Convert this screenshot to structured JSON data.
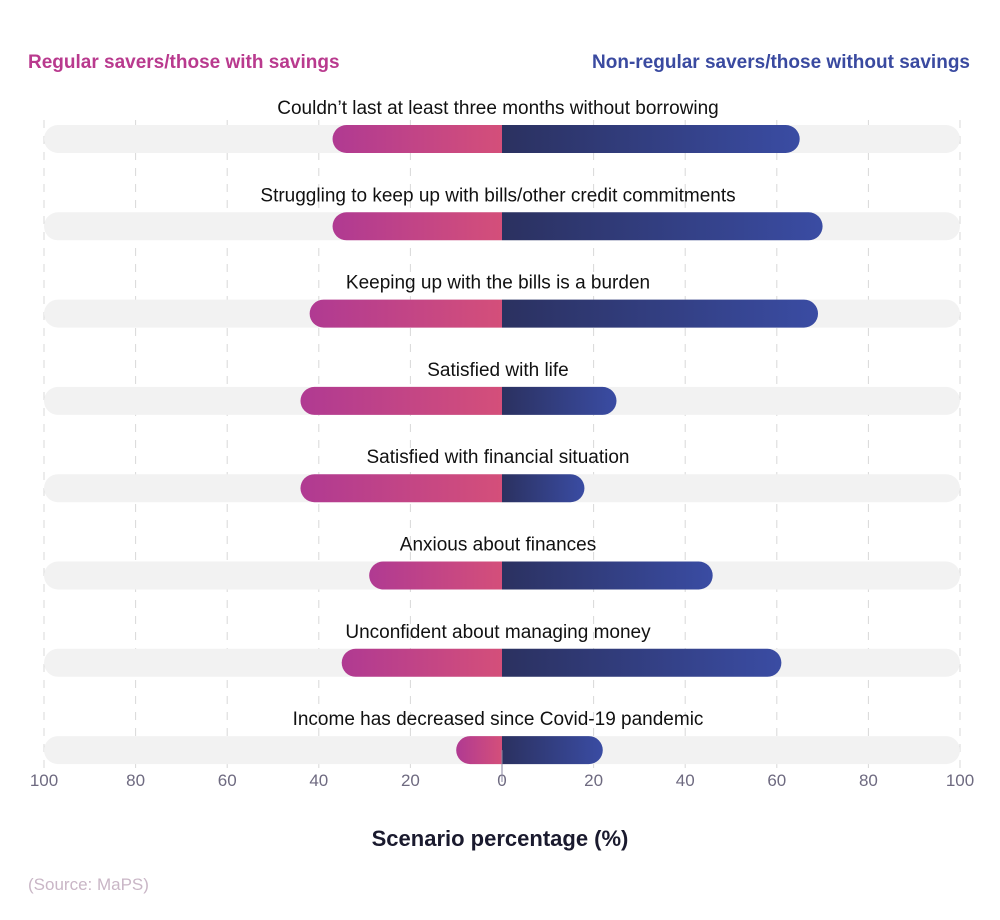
{
  "chart_data": {
    "type": "bar",
    "orientation": "horizontal-diverging",
    "categories": [
      "Couldn’t last at least three months without borrowing",
      "Struggling to keep up with bills/other credit commitments",
      "Keeping up with the bills is a burden",
      "Satisfied with life",
      "Satisfied with financial situation",
      "Anxious about finances",
      "Unconfident about managing money",
      "Income has decreased since Covid-19 pandemic"
    ],
    "series": [
      {
        "name": "Regular savers/those with savings",
        "side": "left",
        "color": "#d44f7a",
        "color_end": "#b03a92",
        "values": [
          37,
          37,
          42,
          44,
          44,
          29,
          35,
          10
        ]
      },
      {
        "name": "Non-regular savers/those without savings",
        "side": "right",
        "color": "#2b3160",
        "color_end": "#3a4ca3",
        "values": [
          65,
          70,
          69,
          25,
          18,
          46,
          61,
          22
        ]
      }
    ],
    "xlabel": "Scenario percentage (%)",
    "xticks": [
      "100",
      "80",
      "60",
      "40",
      "20",
      "0",
      "20",
      "40",
      "60",
      "80",
      "100"
    ],
    "xlim": [
      -100,
      100
    ],
    "grid": true,
    "legend_placement": "top"
  },
  "source": "(Source: MaPS)",
  "colors": {
    "track": "#f2f2f2",
    "grid": "#d8d8d8",
    "tick_text": "#6e6a80"
  }
}
